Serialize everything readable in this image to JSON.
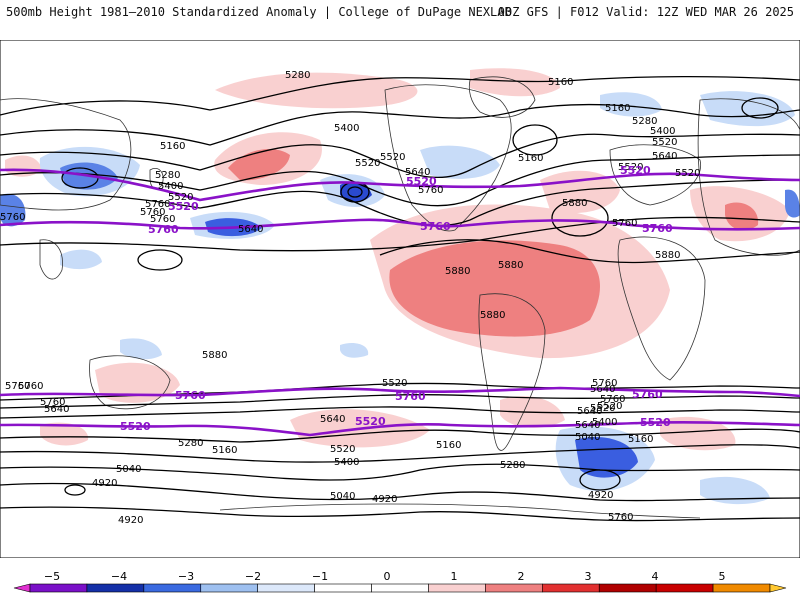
{
  "header": {
    "title_left": "500mb Height 1981–2010 Standardized Anomaly | College of DuPage NEXLAB",
    "title_right": "00Z GFS | F012 Valid: 12Z WED MAR 26 2025"
  },
  "map": {
    "contour_labels": [
      "5280",
      "5160",
      "5160",
      "5280",
      "5400",
      "5520",
      "5160",
      "5400",
      "5280",
      "5400",
      "5520",
      "5160",
      "5520",
      "5640",
      "5760",
      "5640",
      "5520",
      "5760",
      "5640",
      "5760",
      "5880",
      "5880",
      "5880",
      "5880",
      "5880",
      "5880",
      "5640",
      "5760",
      "5520",
      "5760",
      "5760",
      "5640",
      "5760",
      "5520",
      "5640",
      "5280",
      "5160",
      "5040",
      "4920",
      "4920",
      "5640",
      "5520",
      "5400",
      "5160",
      "5280",
      "5040",
      "4920",
      "5760",
      "5640",
      "5520",
      "5400",
      "5040",
      "5160",
      "4920",
      "5520",
      "5520",
      "5760",
      "5760",
      "5760",
      "5760"
    ],
    "colors": {
      "contour": "#000000",
      "highlight_contour": "#8a12c8",
      "pos_1": "#f9d0d0",
      "pos_2": "#ee8080",
      "neg_1": "#c8dcf8",
      "neg_2": "#5a82e6",
      "neg_3": "#2a4ad0",
      "land": "#333333"
    }
  },
  "colorbar": {
    "ticks": [
      "−5",
      "−4",
      "−3",
      "−2",
      "−1",
      "0",
      "1",
      "2",
      "3",
      "4",
      "5"
    ],
    "colors": [
      "#e030d0",
      "#7a10c8",
      "#1430a8",
      "#3a6ae0",
      "#9ec0f0",
      "#dce8fa",
      "#ffffff",
      "#ffffff",
      "#f9d0d0",
      "#ee8080",
      "#e23030",
      "#b00000",
      "#c80000",
      "#f08a00",
      "#ffc830"
    ]
  }
}
